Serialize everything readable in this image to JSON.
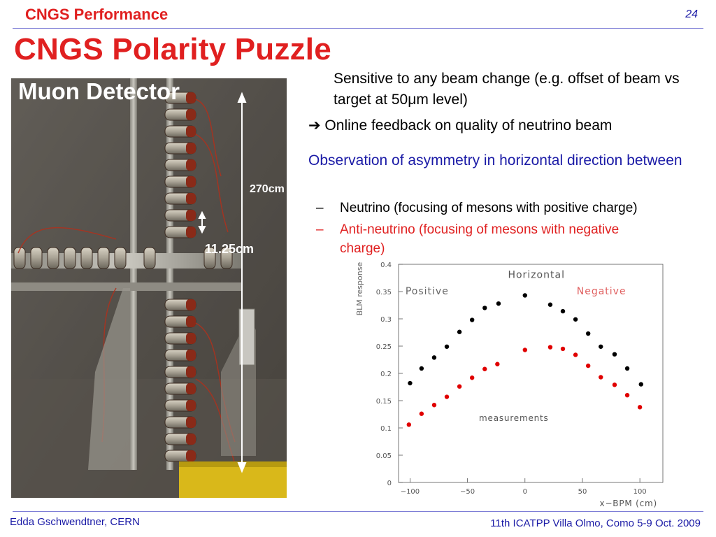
{
  "header": {
    "section_title": "CNGS Performance",
    "page_number": "24"
  },
  "slide": {
    "title": "CNGS Polarity Puzzle"
  },
  "photo": {
    "title": "Muon Detector",
    "label_height": "270cm",
    "label_spacing": "11.25cm"
  },
  "bullets": {
    "b1": "Sensitive to any beam change (e.g. offset of beam vs target at 50μm level)",
    "b2": "➔ Online feedback on quality of neutrino beam",
    "b3": "Observation of asymmetry in horizontal direction between",
    "sub1_dash": "–",
    "sub1": "Neutrino (focusing of mesons with positive charge)",
    "sub2_dash": "–",
    "sub2_line1": "Anti-neutrino (focusing of mesons with negative",
    "sub2_line2": "charge)"
  },
  "footer": {
    "author": "Edda Gschwendtner, CERN",
    "event": "11th ICATPP Villa Olmo, Como 5-9 Oct. 2009"
  },
  "colors": {
    "title_red": "#e02020",
    "accent_blue": "#1a1aa6",
    "rule": "#7d7dd6",
    "positive_series": "#000000",
    "negative_series": "#e00000"
  },
  "chart_data": {
    "type": "scatter",
    "title": "Horizontal",
    "xlabel": "x−BPM (cm)",
    "ylabel": "BLM response",
    "xlim": [
      -110,
      120
    ],
    "ylim": [
      0,
      0.4
    ],
    "x_ticks": [
      -100,
      -50,
      0,
      50,
      100
    ],
    "x_tick_labels": [
      "−100",
      "−50",
      "0",
      "50",
      "100"
    ],
    "y_ticks": [
      0,
      0.05,
      0.1,
      0.15,
      0.2,
      0.25,
      0.3,
      0.35,
      0.4
    ],
    "y_tick_labels": [
      "0",
      "0.05",
      "0.1",
      "0.15",
      "0.2",
      "0.25",
      "0.3",
      "0.35",
      "0.4"
    ],
    "annotations": {
      "positive": "Positive",
      "negative": "Negative",
      "measurements": "measurements"
    },
    "series": [
      {
        "name": "Positive",
        "color": "#000000",
        "points": [
          [
            -100,
            0.182
          ],
          [
            -90,
            0.209
          ],
          [
            -79,
            0.229
          ],
          [
            -68,
            0.249
          ],
          [
            -57,
            0.276
          ],
          [
            -46,
            0.298
          ],
          [
            -35,
            0.32
          ],
          [
            -23,
            0.328
          ],
          [
            0,
            0.343
          ],
          [
            22,
            0.326
          ],
          [
            33,
            0.314
          ],
          [
            44,
            0.299
          ],
          [
            55,
            0.273
          ],
          [
            66,
            0.249
          ],
          [
            78,
            0.235
          ],
          [
            89,
            0.209
          ],
          [
            101,
            0.18
          ]
        ]
      },
      {
        "name": "Negative",
        "color": "#e00000",
        "points": [
          [
            -101,
            0.106
          ],
          [
            -90,
            0.126
          ],
          [
            -79,
            0.142
          ],
          [
            -68,
            0.157
          ],
          [
            -57,
            0.176
          ],
          [
            -46,
            0.192
          ],
          [
            -35,
            0.208
          ],
          [
            -24,
            0.217
          ],
          [
            0,
            0.243
          ],
          [
            22,
            0.248
          ],
          [
            33,
            0.245
          ],
          [
            44,
            0.234
          ],
          [
            55,
            0.214
          ],
          [
            66,
            0.193
          ],
          [
            78,
            0.179
          ],
          [
            89,
            0.16
          ],
          [
            100,
            0.138
          ]
        ]
      }
    ]
  }
}
